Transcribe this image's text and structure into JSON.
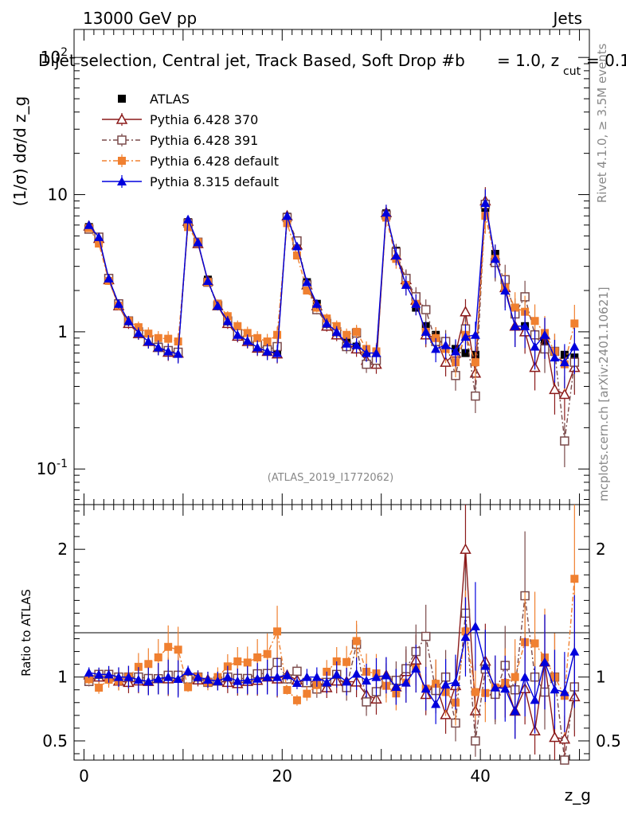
{
  "header": {
    "energy": "13000 GeV pp",
    "category": "Jets",
    "title": "Dijet selection, Central jet, Track Based, Soft Drop #b = 1.0, z_cut = 0.1",
    "title_main": "Dijet selection, Central jet, Track Based, Soft Drop #b",
    "title_tail": "= 1.0, z",
    "title_sub": "cut",
    "title_end": "= 0.1",
    "analysis_id": "(ATLAS_2019_I1772062)",
    "rivet_label": "Rivet 4.1.0, ≥ 3.5M events",
    "mcplots_label": "mcplots.cern.ch [arXiv:2401.10621]"
  },
  "chart_data": [
    {
      "type": "scatter",
      "panel": "main",
      "ylabel": "(1/σ) dσ/d z_g",
      "yscale": "log",
      "ylim": [
        0.055,
        160
      ],
      "xlim": [
        -1,
        51
      ],
      "ytick_labels": [
        "10^-1",
        "1",
        "10",
        "10^2"
      ],
      "x": [
        0.5,
        1.5,
        2.5,
        3.5,
        4.5,
        5.5,
        6.5,
        7.5,
        8.5,
        9.5,
        10.5,
        11.5,
        12.5,
        13.5,
        14.5,
        15.5,
        16.5,
        17.5,
        18.5,
        19.5,
        20.5,
        21.5,
        22.5,
        23.5,
        24.5,
        25.5,
        26.5,
        27.5,
        28.5,
        29.5,
        30.5,
        31.5,
        32.5,
        33.5,
        34.5,
        35.5,
        36.5,
        37.5,
        38.5,
        39.5,
        40.5,
        41.5,
        42.5,
        43.5,
        44.5,
        45.5,
        46.5,
        47.5,
        48.5,
        49.5
      ],
      "series": [
        {
          "name": "ATLAS",
          "color": "#000000",
          "marker": "square-filled",
          "line": "none",
          "values": [
            5.8,
            4.8,
            2.4,
            1.6,
            1.2,
            1.0,
            0.88,
            0.78,
            0.72,
            0.7,
            6.3,
            4.5,
            2.4,
            1.6,
            1.2,
            0.98,
            0.88,
            0.78,
            0.72,
            0.7,
            6.9,
            4.4,
            2.3,
            1.6,
            1.2,
            0.98,
            0.85,
            0.78,
            0.72,
            0.7,
            7.3,
            3.9,
            2.3,
            1.5,
            1.1,
            0.95,
            0.85,
            0.75,
            0.7,
            0.68,
            8.0,
            3.7,
            2.2,
            1.5,
            1.1,
            0.95,
            0.85,
            0.72,
            0.68,
            0.65
          ]
        },
        {
          "name": "Pythia 6.428 370",
          "color": "#8b1a1a",
          "marker": "triangle-open",
          "line": "solid",
          "values": [
            5.9,
            4.8,
            2.4,
            1.55,
            1.15,
            0.97,
            0.85,
            0.77,
            0.71,
            0.7,
            6.4,
            4.4,
            2.35,
            1.55,
            1.15,
            0.93,
            0.85,
            0.76,
            0.72,
            0.69,
            7.0,
            4.3,
            2.2,
            1.55,
            1.1,
            0.95,
            0.82,
            0.75,
            0.62,
            0.58,
            7.4,
            3.6,
            2.4,
            1.7,
            0.95,
            0.9,
            0.6,
            0.7,
            1.4,
            0.5,
            9.0,
            3.3,
            2.1,
            1.1,
            1.0,
            0.55,
            0.95,
            0.38,
            0.35,
            0.55
          ]
        },
        {
          "name": "Pythia 6.428 391",
          "color": "#7a4a4a",
          "marker": "square-open",
          "line": "dashdot",
          "values": [
            5.6,
            4.9,
            2.45,
            1.6,
            1.2,
            1.0,
            0.87,
            0.77,
            0.73,
            0.71,
            6.2,
            4.5,
            2.3,
            1.55,
            1.2,
            0.97,
            0.87,
            0.8,
            0.74,
            0.78,
            6.8,
            4.6,
            2.2,
            1.45,
            1.15,
            1.0,
            0.78,
            0.98,
            0.58,
            0.62,
            7.1,
            3.8,
            2.45,
            1.8,
            1.45,
            0.85,
            0.85,
            0.48,
            1.05,
            0.34,
            8.5,
            3.2,
            2.4,
            1.35,
            1.8,
            0.95,
            0.75,
            0.72,
            0.16,
            0.6
          ]
        },
        {
          "name": "Pythia 6.428 default",
          "color": "#f08030",
          "marker": "square-filled",
          "line": "dashdot",
          "values": [
            5.7,
            4.4,
            2.35,
            1.55,
            1.2,
            1.08,
            0.97,
            0.9,
            0.89,
            0.85,
            5.8,
            4.5,
            2.3,
            1.6,
            1.3,
            1.1,
            0.98,
            0.9,
            0.85,
            0.95,
            6.2,
            3.6,
            2.0,
            1.5,
            1.25,
            1.1,
            0.95,
            1.0,
            0.75,
            0.72,
            6.8,
            3.4,
            2.2,
            1.6,
            1.0,
            0.9,
            0.75,
            0.6,
            0.95,
            0.6,
            7.0,
            3.4,
            2.1,
            1.5,
            1.4,
            1.2,
            0.98,
            0.72,
            0.58,
            1.15
          ]
        },
        {
          "name": "Pythia 8.315 default",
          "color": "#0000dd",
          "marker": "triangle-filled",
          "line": "solid",
          "values": [
            6.0,
            4.9,
            2.45,
            1.6,
            1.2,
            0.98,
            0.85,
            0.77,
            0.72,
            0.69,
            6.6,
            4.5,
            2.35,
            1.55,
            1.2,
            0.95,
            0.86,
            0.77,
            0.72,
            0.7,
            7.0,
            4.2,
            2.3,
            1.6,
            1.15,
            1.0,
            0.82,
            0.8,
            0.7,
            0.7,
            7.4,
            3.6,
            2.2,
            1.6,
            1.0,
            0.75,
            0.8,
            0.72,
            0.92,
            0.95,
            8.7,
            3.4,
            2.0,
            1.1,
            1.1,
            0.78,
            0.95,
            0.65,
            0.6,
            0.78
          ]
        }
      ]
    },
    {
      "type": "scatter",
      "panel": "ratio",
      "ylabel": "Ratio to ATLAS",
      "ylim": [
        0.35,
        2.35
      ],
      "xlim": [
        -1,
        51
      ],
      "xlabel": "z_g",
      "xtick_labels": [
        "0",
        "20",
        "40"
      ],
      "ytick_labels": [
        "0.5",
        "1",
        "2"
      ]
    }
  ]
}
